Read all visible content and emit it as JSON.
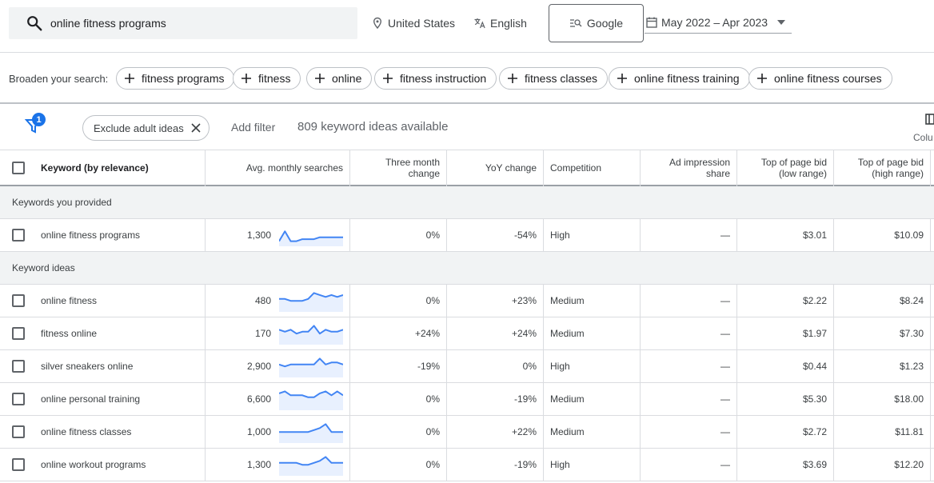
{
  "search": {
    "value": "online fitness programs"
  },
  "toolbar": {
    "location": "United States",
    "language": "English",
    "network": "Google",
    "date_range": "May 2022 – Apr 2023"
  },
  "broaden": {
    "label": "Broaden your search:",
    "chips": [
      "fitness programs",
      "fitness",
      "online",
      "fitness instruction",
      "fitness classes",
      "online fitness training",
      "online fitness courses"
    ]
  },
  "filters": {
    "badge_count": "1",
    "exclude_chip": "Exclude adult ideas",
    "add_filter": "Add filter",
    "ideas_count": "809 keyword ideas available",
    "columns_label": "Colu"
  },
  "table": {
    "headers": {
      "keyword": "Keyword (by relevance)",
      "avg": "Avg. monthly searches",
      "three_month_1": "Three month",
      "three_month_2": "change",
      "yoy": "YoY change",
      "competition": "Competition",
      "ad_impr_1": "Ad impression",
      "ad_impr_2": "share",
      "bid_low_1": "Top of page bid",
      "bid_low_2": "(low range)",
      "bid_high_1": "Top of page bid",
      "bid_high_2": "(high range)"
    },
    "groups": {
      "provided": "Keywords you provided",
      "ideas": "Keyword ideas"
    },
    "rows": [
      {
        "keyword": "online fitness programs",
        "avg": "1,300",
        "three_month": "0%",
        "yoy": "-54%",
        "competition": "High",
        "ad_share": "—",
        "bid_low": "$3.01",
        "bid_high": "$10.09",
        "trend": [
          8,
          3,
          8,
          8,
          7,
          7,
          7,
          6,
          6,
          6,
          6,
          6
        ]
      },
      {
        "keyword": "online fitness",
        "avg": "480",
        "three_month": "0%",
        "yoy": "+23%",
        "competition": "Medium",
        "ad_share": "—",
        "bid_low": "$2.22",
        "bid_high": "$8.24",
        "trend": [
          4,
          4,
          5,
          5,
          5,
          4,
          1,
          2,
          3,
          2,
          3,
          2
        ]
      },
      {
        "keyword": "fitness online",
        "avg": "170",
        "three_month": "+24%",
        "yoy": "+24%",
        "competition": "Medium",
        "ad_share": "—",
        "bid_low": "$1.97",
        "bid_high": "$7.30",
        "trend": [
          3,
          4,
          3,
          5,
          4,
          4,
          1,
          5,
          3,
          4,
          4,
          3
        ]
      },
      {
        "keyword": "silver sneakers online",
        "avg": "2,900",
        "three_month": "-19%",
        "yoy": "0%",
        "competition": "High",
        "ad_share": "—",
        "bid_low": "$0.44",
        "bid_high": "$1.23",
        "trend": [
          4,
          5,
          4,
          4,
          4,
          4,
          4,
          1,
          4,
          3,
          3,
          4
        ]
      },
      {
        "keyword": "online personal training",
        "avg": "6,600",
        "three_month": "0%",
        "yoy": "-19%",
        "competition": "Medium",
        "ad_share": "—",
        "bid_low": "$5.30",
        "bid_high": "$18.00",
        "trend": [
          2,
          1,
          3,
          3,
          3,
          4,
          4,
          2,
          1,
          3,
          1,
          3
        ]
      },
      {
        "keyword": "online fitness classes",
        "avg": "1,000",
        "three_month": "0%",
        "yoy": "+22%",
        "competition": "Medium",
        "ad_share": "—",
        "bid_low": "$2.72",
        "bid_high": "$11.81",
        "trend": [
          5,
          5,
          5,
          5,
          5,
          5,
          4,
          3,
          1,
          5,
          5,
          5
        ]
      },
      {
        "keyword": "online workout programs",
        "avg": "1,300",
        "three_month": "0%",
        "yoy": "-19%",
        "competition": "High",
        "ad_share": "—",
        "bid_low": "$3.69",
        "bid_high": "$12.20",
        "trend": [
          4,
          4,
          4,
          4,
          5,
          5,
          4,
          3,
          1,
          4,
          4,
          4
        ]
      }
    ]
  },
  "colors": {
    "accent": "#1a73e8",
    "sparkline": "#4285f4",
    "spark_fill": "#e8f0fe"
  }
}
